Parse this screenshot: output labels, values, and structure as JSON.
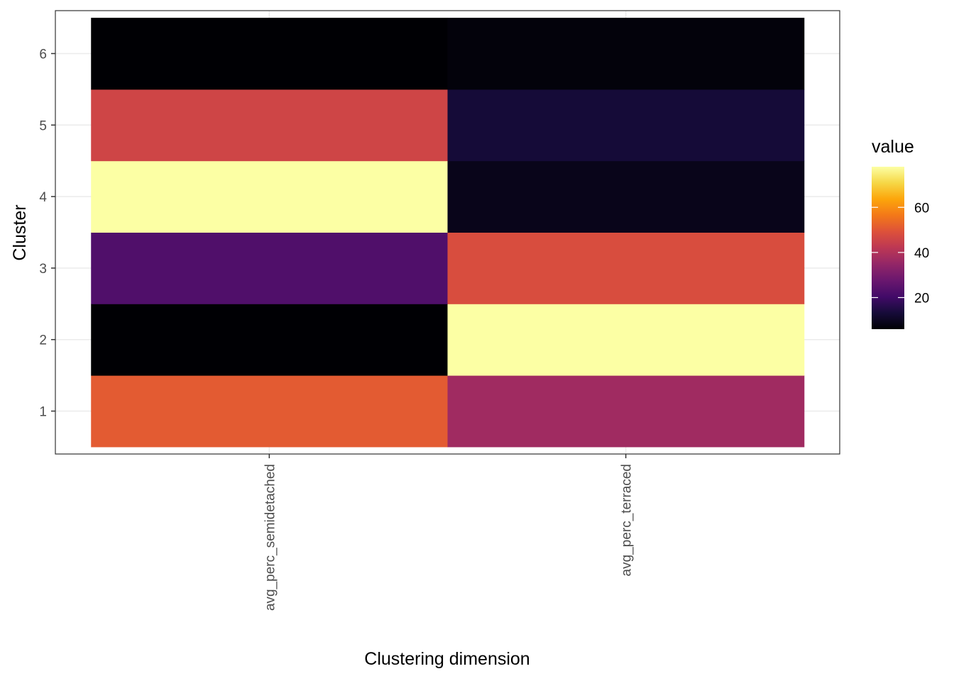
{
  "chart_data": {
    "type": "heatmap",
    "xlabel": "Clustering dimension",
    "ylabel": "Cluster",
    "x_categories": [
      "avg_perc_semidetached",
      "avg_perc_terraced"
    ],
    "y_categories": [
      "1",
      "2",
      "3",
      "4",
      "5",
      "6"
    ],
    "values": [
      [
        51,
        37
      ],
      [
        6,
        78
      ],
      [
        23,
        48
      ],
      [
        78,
        9
      ],
      [
        46,
        13
      ],
      [
        6,
        7
      ]
    ],
    "legend": {
      "title": "value",
      "placement": "right",
      "range": [
        6,
        78
      ],
      "ticks": [
        20,
        40,
        60
      ]
    },
    "colormap": "inferno",
    "grid": true
  }
}
